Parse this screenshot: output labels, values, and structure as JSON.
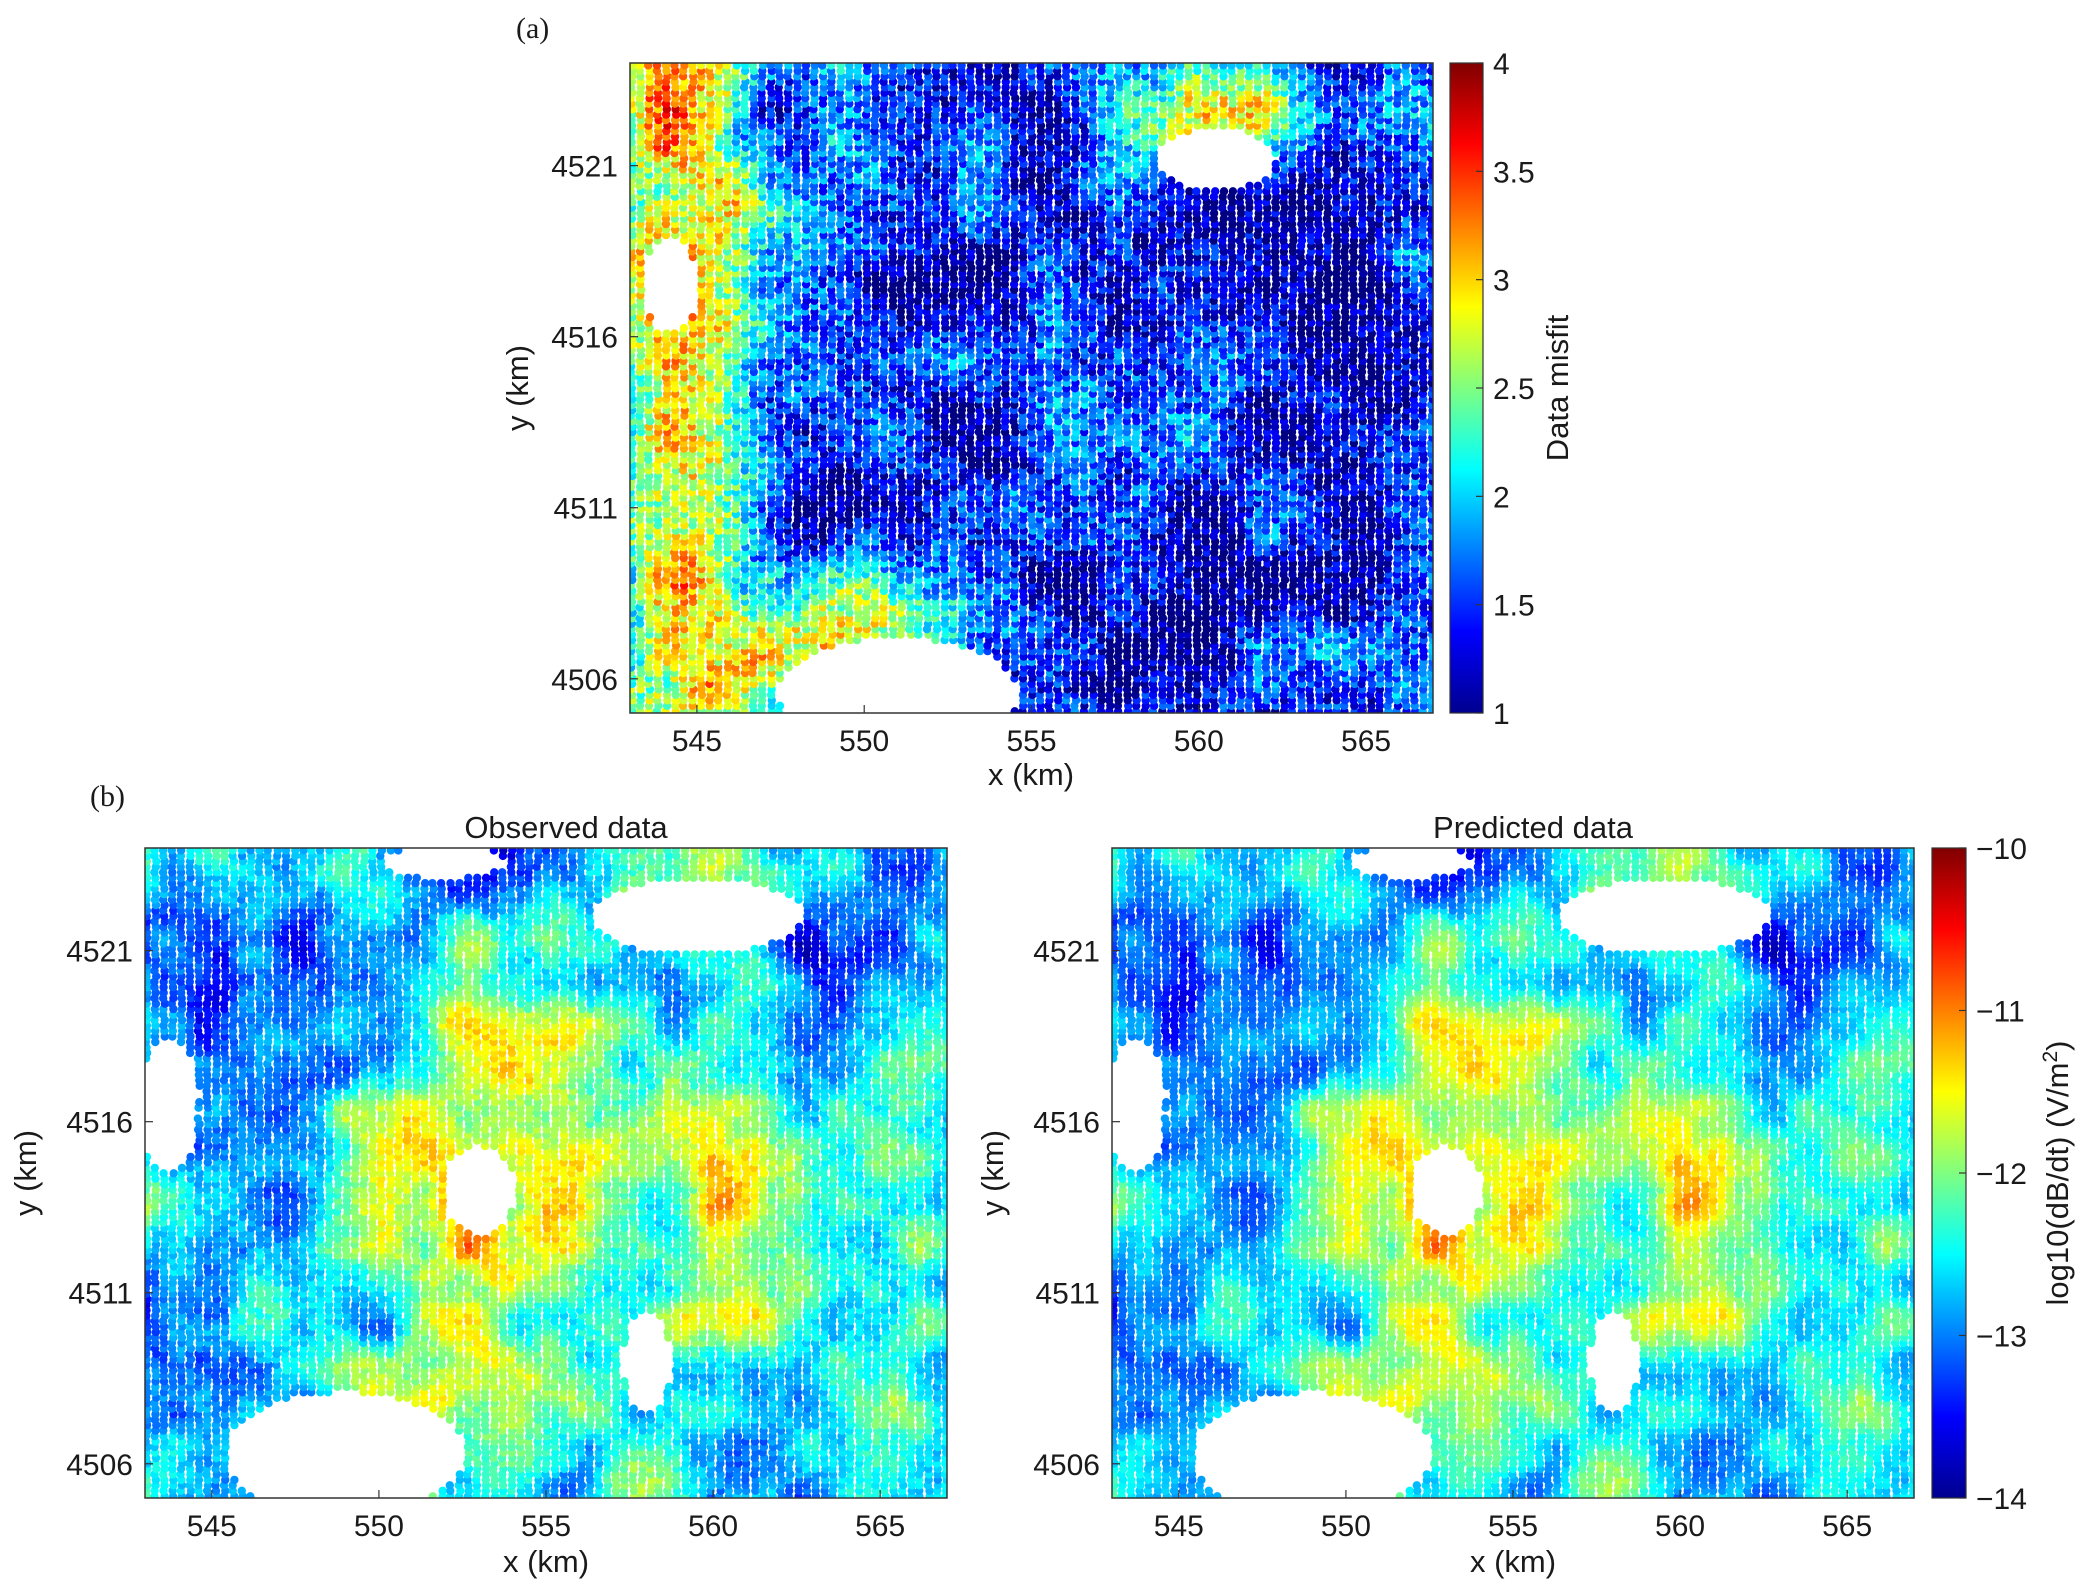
{
  "colors": {
    "colormap": "jet",
    "axis": "#333333",
    "background": "#ffffff"
  },
  "chart_data": [
    {
      "type": "heatmap",
      "panel_label": "(a)",
      "title": "",
      "xlabel": "x (km)",
      "ylabel": "y (km)",
      "xlim": [
        543,
        567
      ],
      "ylim": [
        4505,
        4524
      ],
      "xticks": [
        545,
        550,
        555,
        560,
        565
      ],
      "yticks": [
        4506,
        4511,
        4516,
        4521
      ],
      "xtick_labels": [
        "545",
        "550",
        "555",
        "560",
        "565"
      ],
      "ytick_labels": [
        "4506",
        "4511",
        "4516",
        "4521"
      ],
      "colorbar": {
        "label": "Data misfit",
        "range": [
          1,
          4
        ],
        "ticks": [
          1,
          1.5,
          2,
          2.5,
          3,
          3.5,
          4
        ],
        "tick_labels": [
          "1",
          "1.5",
          "2",
          "2.5",
          "3",
          "3.5",
          "4"
        ]
      },
      "description_values": "flight-line scatter of per-sounding data misfit (1–4), high values concentrated in west, south-central and north-east zones"
    },
    {
      "type": "heatmap",
      "panel_label": "(b)",
      "title": "Observed data",
      "xlabel": "x (km)",
      "ylabel": "y (km)",
      "xlim": [
        543,
        567
      ],
      "ylim": [
        4505,
        4524
      ],
      "xticks": [
        545,
        550,
        555,
        560,
        565
      ],
      "yticks": [
        4506,
        4511,
        4516,
        4521
      ],
      "xtick_labels": [
        "545",
        "550",
        "555",
        "560",
        "565"
      ],
      "ytick_labels": [
        "4506",
        "4511",
        "4516",
        "4521"
      ]
    },
    {
      "type": "heatmap",
      "title": "Predicted data",
      "xlabel": "x (km)",
      "ylabel": "y (km)",
      "xlim": [
        543,
        567
      ],
      "ylim": [
        4505,
        4524
      ],
      "xticks": [
        545,
        550,
        555,
        560,
        565
      ],
      "yticks": [
        4506,
        4511,
        4516,
        4521
      ],
      "xtick_labels": [
        "545",
        "550",
        "555",
        "560",
        "565"
      ],
      "ytick_labels": [
        "4506",
        "4511",
        "4516",
        "4521"
      ],
      "colorbar": {
        "label": "log10(dB/dt) (V/m",
        "label_sup": "2",
        "label_end": ")",
        "range": [
          -14,
          -10
        ],
        "ticks": [
          -14,
          -13,
          -12,
          -11,
          -10
        ],
        "tick_labels": [
          "−14",
          "−13",
          "−12",
          "−11",
          "−10"
        ]
      }
    }
  ]
}
